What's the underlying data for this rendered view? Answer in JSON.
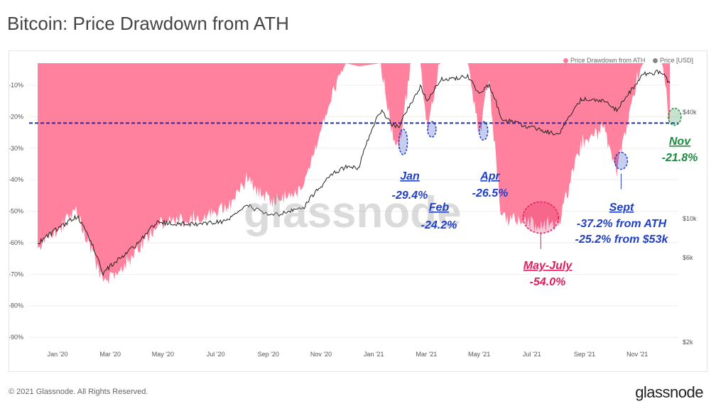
{
  "header": {
    "title": "Bitcoin: Price Drawdown from ATH"
  },
  "footer": {
    "copyright": "© 2021 Glassnode. All Rights Reserved.",
    "brand": "glassnode"
  },
  "watermark": "glassnode",
  "colors": {
    "drawdown": "#ff7a98",
    "price": "#222222",
    "blue": "#1f3fc7",
    "red": "#e01c5a",
    "green": "#1e8a3e"
  },
  "legend": [
    {
      "label": "Price Drawdown from ATH",
      "color": "#ff7a98"
    },
    {
      "label": "Price [USD]",
      "color": "#888888"
    }
  ],
  "annotations": [
    {
      "label": "Jan",
      "value": "-29.4%",
      "color": "#1f3fc7"
    },
    {
      "label": "Feb",
      "value": "-24.2%",
      "color": "#1f3fc7"
    },
    {
      "label": "Apr",
      "value": "-26.5%",
      "color": "#1f3fc7"
    },
    {
      "label": "May-July",
      "value": "-54.0%",
      "color": "#e01c5a"
    },
    {
      "label": "Sept",
      "value": "-37.2% from ATH",
      "value2": "-25.2% from $53k",
      "color": "#1f3fc7"
    },
    {
      "label": "Nov",
      "value": "-21.8%",
      "color": "#1e8a3e"
    }
  ],
  "chart_data": {
    "type": "area",
    "title": "Bitcoin: Price Drawdown from ATH",
    "x_ticks": [
      "Jan '20",
      "Mar '20",
      "May '20",
      "Jul '20",
      "Sep '20",
      "Nov '20",
      "Jan '21",
      "Mar '21",
      "May '21",
      "Jul '21",
      "Sep '21",
      "Nov '21"
    ],
    "y_left_ticks": [
      "-10%",
      "-20%",
      "-30%",
      "-40%",
      "-50%",
      "-60%",
      "-70%",
      "-80%",
      "-90%"
    ],
    "y_left_range": [
      -92,
      -3
    ],
    "y_right_ticks": [
      "$40k",
      "$10k",
      "$6k",
      "$2k"
    ],
    "y_right_scale": "log",
    "reference_line": -22,
    "series": [
      {
        "name": "Price Drawdown from ATH",
        "unit": "%",
        "points": [
          [
            "2020-01-01",
            -61
          ],
          [
            "2020-02-13",
            -50
          ],
          [
            "2020-03-12",
            -73
          ],
          [
            "2020-04-15",
            -64
          ],
          [
            "2020-05-10",
            -54
          ],
          [
            "2020-06-20",
            -52
          ],
          [
            "2020-07-25",
            -49
          ],
          [
            "2020-08-15",
            -40
          ],
          [
            "2020-09-10",
            -47
          ],
          [
            "2020-10-15",
            -43
          ],
          [
            "2020-11-05",
            -22
          ],
          [
            "2020-11-20",
            -10
          ],
          [
            "2020-12-01",
            -3
          ],
          [
            "2020-12-15",
            -4
          ],
          [
            "2021-01-08",
            -3
          ],
          [
            "2021-01-22",
            -28
          ],
          [
            "2021-01-28",
            -29.4
          ],
          [
            "2021-02-10",
            -3
          ],
          [
            "2021-02-20",
            -3
          ],
          [
            "2021-02-28",
            -24.2
          ],
          [
            "2021-03-13",
            -3
          ],
          [
            "2021-04-13",
            -3
          ],
          [
            "2021-04-25",
            -26.5
          ],
          [
            "2021-05-05",
            -8
          ],
          [
            "2021-05-19",
            -52
          ],
          [
            "2021-06-22",
            -54
          ],
          [
            "2021-07-20",
            -54
          ],
          [
            "2021-08-14",
            -28
          ],
          [
            "2021-09-07",
            -24
          ],
          [
            "2021-09-21",
            -37.2
          ],
          [
            "2021-10-15",
            -6
          ],
          [
            "2021-10-20",
            -3
          ],
          [
            "2021-11-10",
            -3
          ],
          [
            "2021-11-18",
            -21.8
          ]
        ]
      },
      {
        "name": "Price [USD]",
        "unit": "USD",
        "points": [
          [
            "2020-01-01",
            7200
          ],
          [
            "2020-02-13",
            10300
          ],
          [
            "2020-03-12",
            4900
          ],
          [
            "2020-04-15",
            6900
          ],
          [
            "2020-05-10",
            9500
          ],
          [
            "2020-06-20",
            9300
          ],
          [
            "2020-07-25",
            9700
          ],
          [
            "2020-08-15",
            11900
          ],
          [
            "2020-09-10",
            10300
          ],
          [
            "2020-10-15",
            11400
          ],
          [
            "2020-11-05",
            15500
          ],
          [
            "2020-11-20",
            18400
          ],
          [
            "2020-12-01",
            19500
          ],
          [
            "2020-12-15",
            19300
          ],
          [
            "2021-01-08",
            40700
          ],
          [
            "2021-01-22",
            33000
          ],
          [
            "2021-01-28",
            33500
          ],
          [
            "2021-02-10",
            45000
          ],
          [
            "2021-02-20",
            56000
          ],
          [
            "2021-02-28",
            45500
          ],
          [
            "2021-03-13",
            61000
          ],
          [
            "2021-04-13",
            63500
          ],
          [
            "2021-04-25",
            49500
          ],
          [
            "2021-05-05",
            57000
          ],
          [
            "2021-05-19",
            37000
          ],
          [
            "2021-06-22",
            32500
          ],
          [
            "2021-07-20",
            29800
          ],
          [
            "2021-08-14",
            47500
          ],
          [
            "2021-09-07",
            46500
          ],
          [
            "2021-09-21",
            41000
          ],
          [
            "2021-10-15",
            59500
          ],
          [
            "2021-10-20",
            66000
          ],
          [
            "2021-11-10",
            67500
          ],
          [
            "2021-11-18",
            57000
          ]
        ]
      }
    ]
  }
}
